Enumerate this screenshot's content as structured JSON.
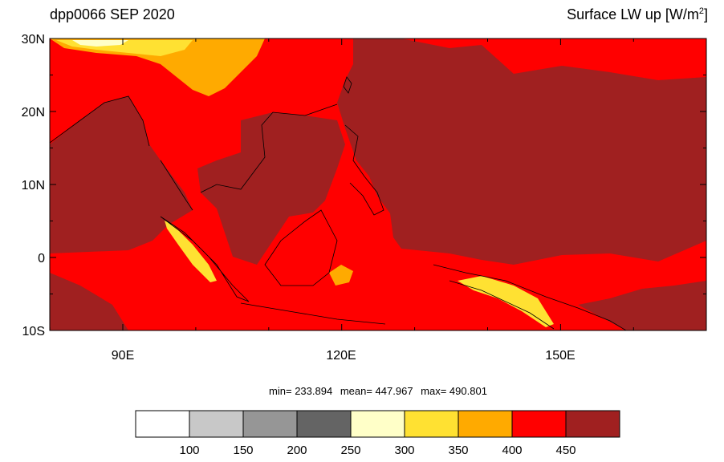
{
  "title": {
    "left": "dpp0066 SEP 2020",
    "right_main": "Surface LW up [W/m",
    "right_sup": "2",
    "right_tail": "]"
  },
  "axes": {
    "y_labels": [
      "30N",
      "20N",
      "10N",
      "0",
      "10S"
    ],
    "x_labels": [
      "90E",
      "120E",
      "150E"
    ]
  },
  "stats": {
    "min": "min= 233.894",
    "mean": "mean= 447.967",
    "max": "max= 490.801"
  },
  "colorbar": {
    "colors": [
      "#ffffff",
      "#c8c8c8",
      "#969696",
      "#646464",
      "#ffffc8",
      "#ffe132",
      "#ffaa00",
      "#ff0000",
      "#a02020"
    ],
    "labels": [
      "100",
      "150",
      "200",
      "250",
      "300",
      "350",
      "400",
      "450"
    ]
  },
  "palette": {
    "land_warm": "#ff0000",
    "ocean_hot": "#a02020",
    "highland": "#ffaa00",
    "peak": "#ffe132",
    "snow": "#ffffc8"
  }
}
